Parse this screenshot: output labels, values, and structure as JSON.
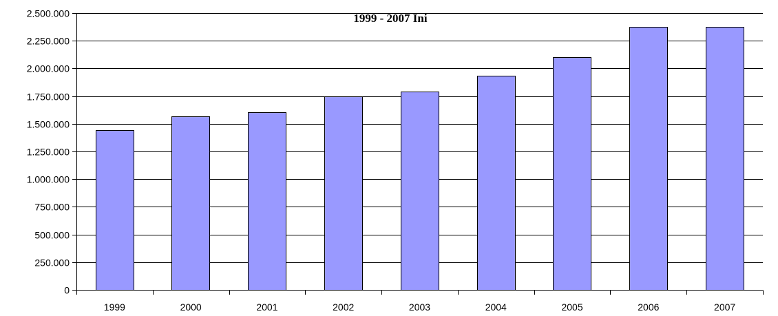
{
  "chart_data": {
    "type": "bar",
    "title": "1999 - 2007 Ini",
    "xlabel": "",
    "ylabel": "",
    "categories": [
      "1999",
      "2000",
      "2001",
      "2002",
      "2003",
      "2004",
      "2005",
      "2006",
      "2007"
    ],
    "values": [
      1445000,
      1565000,
      1605000,
      1750000,
      1790000,
      1935000,
      2105000,
      2375000,
      2375000
    ],
    "ylim": [
      0,
      2500000
    ],
    "y_ticks": [
      0,
      250000,
      500000,
      750000,
      1000000,
      1250000,
      1500000,
      1750000,
      2000000,
      2250000,
      2500000
    ],
    "y_tick_labels": [
      "0",
      "250.000",
      "500.000",
      "750.000",
      "1.000.000",
      "1.250.000",
      "1.500.000",
      "1.750.000",
      "2.000.000",
      "2.250.000",
      "2.500.000"
    ],
    "grid": true,
    "legend": "none",
    "colors": {
      "bar_fill": "#9999ff",
      "bar_stroke": "#000000",
      "grid": "#000000",
      "axis": "#000000"
    }
  }
}
